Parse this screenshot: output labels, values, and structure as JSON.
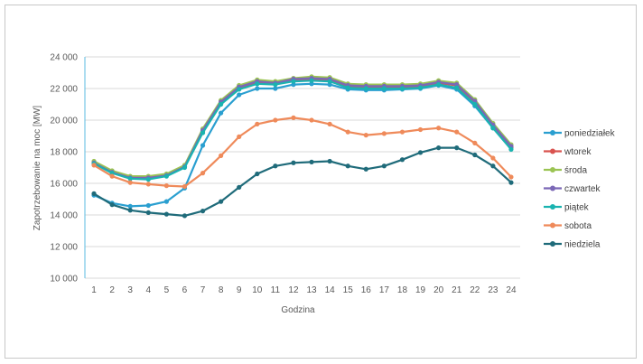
{
  "chart_data": {
    "type": "line",
    "title": "",
    "xlabel": "Godzina",
    "ylabel": "Zapotrzebowanie na moc [MW]",
    "ylim": [
      10000,
      24000
    ],
    "ytick_step": 2000,
    "ytick_labels": [
      "10 000",
      "12 000",
      "14 000",
      "16 000",
      "18 000",
      "20 000",
      "22 000",
      "24 000"
    ],
    "grid": true,
    "legend_position": "right",
    "x": [
      1,
      2,
      3,
      4,
      5,
      6,
      7,
      8,
      9,
      10,
      11,
      12,
      13,
      14,
      15,
      16,
      17,
      18,
      19,
      20,
      21,
      22,
      23,
      24
    ],
    "series": [
      {
        "name": "poniedziałek",
        "color": "#2a9fd0",
        "values": [
          15250,
          14750,
          14550,
          14600,
          14850,
          15700,
          18400,
          20450,
          21600,
          22000,
          22000,
          22250,
          22300,
          22250,
          21950,
          21900,
          21900,
          21950,
          22000,
          22200,
          21950,
          20900,
          19500,
          18250
        ]
      },
      {
        "name": "wtorek",
        "color": "#d9534f",
        "values": [
          17350,
          16700,
          16350,
          16350,
          16500,
          17050,
          19300,
          21100,
          22050,
          22350,
          22300,
          22550,
          22600,
          22550,
          22150,
          22100,
          22100,
          22100,
          22150,
          22350,
          22200,
          21150,
          19650,
          18300
        ]
      },
      {
        "name": "środa",
        "color": "#9bc453",
        "values": [
          17400,
          16800,
          16450,
          16450,
          16600,
          17150,
          19450,
          21250,
          22200,
          22550,
          22450,
          22650,
          22750,
          22700,
          22300,
          22250,
          22250,
          22250,
          22300,
          22500,
          22350,
          21300,
          19800,
          18450
        ]
      },
      {
        "name": "czwartek",
        "color": "#7b68b6",
        "values": [
          17300,
          16700,
          16350,
          16350,
          16500,
          17050,
          19350,
          21150,
          22100,
          22450,
          22350,
          22600,
          22650,
          22600,
          22200,
          22150,
          22150,
          22150,
          22200,
          22400,
          22250,
          21200,
          19700,
          18350
        ]
      },
      {
        "name": "piątek",
        "color": "#1ab3b0",
        "values": [
          17250,
          16650,
          16300,
          16250,
          16450,
          17000,
          19200,
          21000,
          21950,
          22300,
          22250,
          22450,
          22500,
          22450,
          22050,
          22000,
          22000,
          22000,
          22050,
          22250,
          22050,
          21000,
          19500,
          18150
        ]
      },
      {
        "name": "sobota",
        "color": "#ef8a5a",
        "values": [
          17150,
          16450,
          16050,
          15950,
          15850,
          15800,
          16650,
          17750,
          18950,
          19750,
          20000,
          20150,
          20000,
          19750,
          19250,
          19050,
          19150,
          19250,
          19400,
          19500,
          19250,
          18550,
          17600,
          16400
        ]
      },
      {
        "name": "niedziela",
        "color": "#1f6b7a",
        "values": [
          15350,
          14650,
          14300,
          14150,
          14050,
          13950,
          14250,
          14850,
          15750,
          16600,
          17100,
          17300,
          17350,
          17400,
          17100,
          16900,
          17100,
          17500,
          17950,
          18250,
          18250,
          17800,
          17100,
          16050
        ]
      }
    ]
  }
}
